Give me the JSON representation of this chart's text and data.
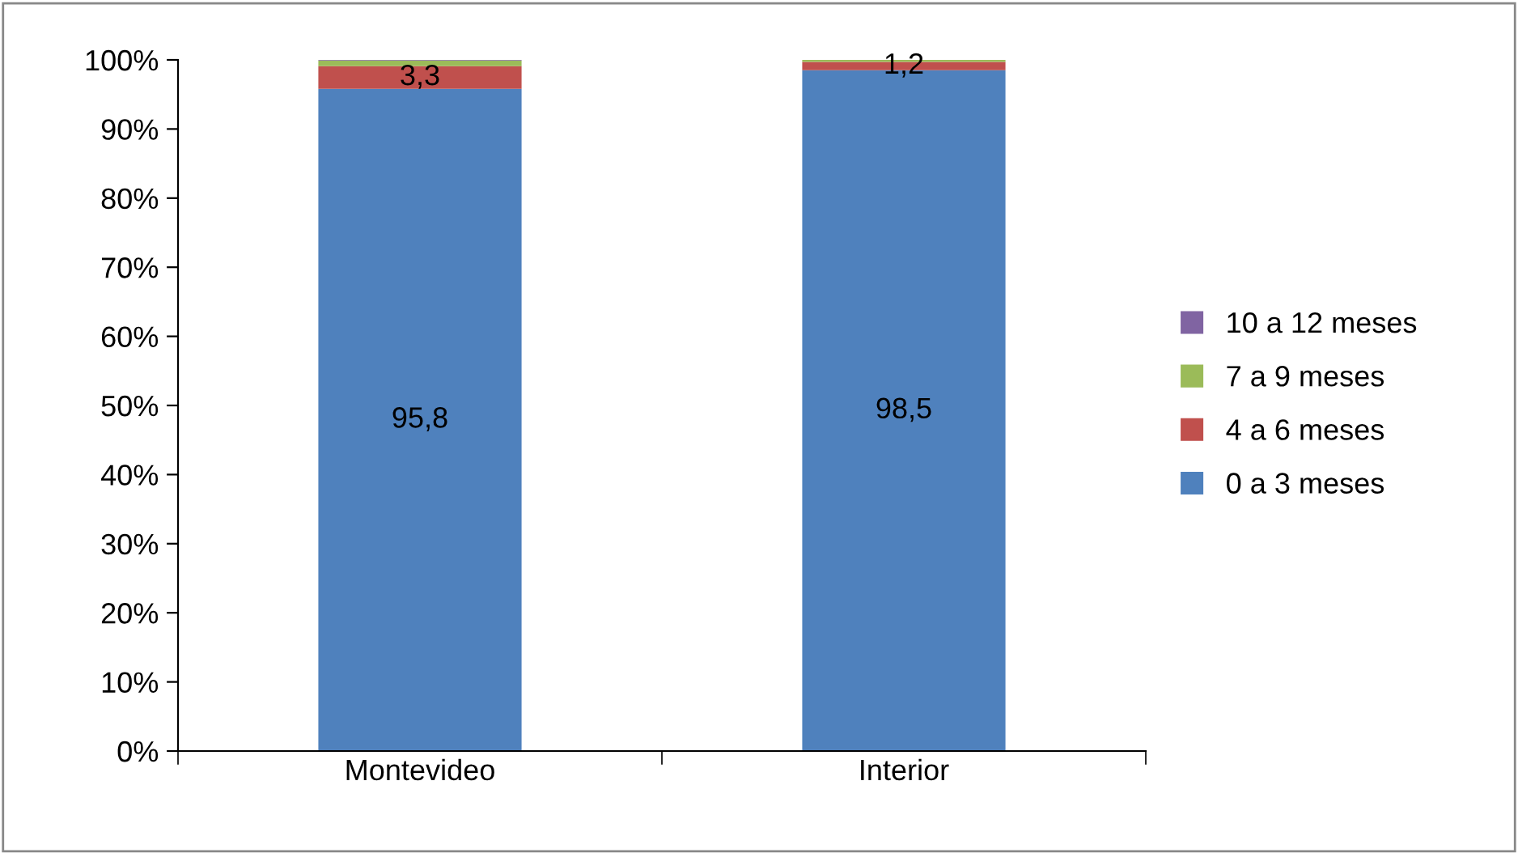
{
  "chart_data": {
    "type": "bar",
    "stacked": true,
    "categories": [
      "Montevideo",
      "Interior"
    ],
    "series": [
      {
        "name": "0 a 3 meses",
        "color": "#4f81bd",
        "values": [
          95.8,
          98.5
        ],
        "value_labels": [
          "95,8",
          "98,5"
        ]
      },
      {
        "name": "4 a 6 meses",
        "color": "#c0504d",
        "values": [
          3.3,
          1.2
        ],
        "value_labels": [
          "3,3",
          "1,2"
        ]
      },
      {
        "name": "7 a 9 meses",
        "color": "#9bbb59",
        "values": [
          0.8,
          0.3
        ]
      },
      {
        "name": "10 a 12 meses",
        "color": "#8064a2",
        "values": [
          0.1,
          0
        ]
      }
    ],
    "ylim": [
      0,
      100
    ],
    "yticks": [
      {
        "value": 0,
        "label": "0%"
      },
      {
        "value": 10,
        "label": "10%"
      },
      {
        "value": 20,
        "label": "20%"
      },
      {
        "value": 30,
        "label": "30%"
      },
      {
        "value": 40,
        "label": "40%"
      },
      {
        "value": 50,
        "label": "50%"
      },
      {
        "value": 60,
        "label": "60%"
      },
      {
        "value": 70,
        "label": "70%"
      },
      {
        "value": 80,
        "label": "80%"
      },
      {
        "value": 90,
        "label": "90%"
      },
      {
        "value": 100,
        "label": "100%"
      }
    ],
    "grid": false,
    "legend": "right"
  }
}
